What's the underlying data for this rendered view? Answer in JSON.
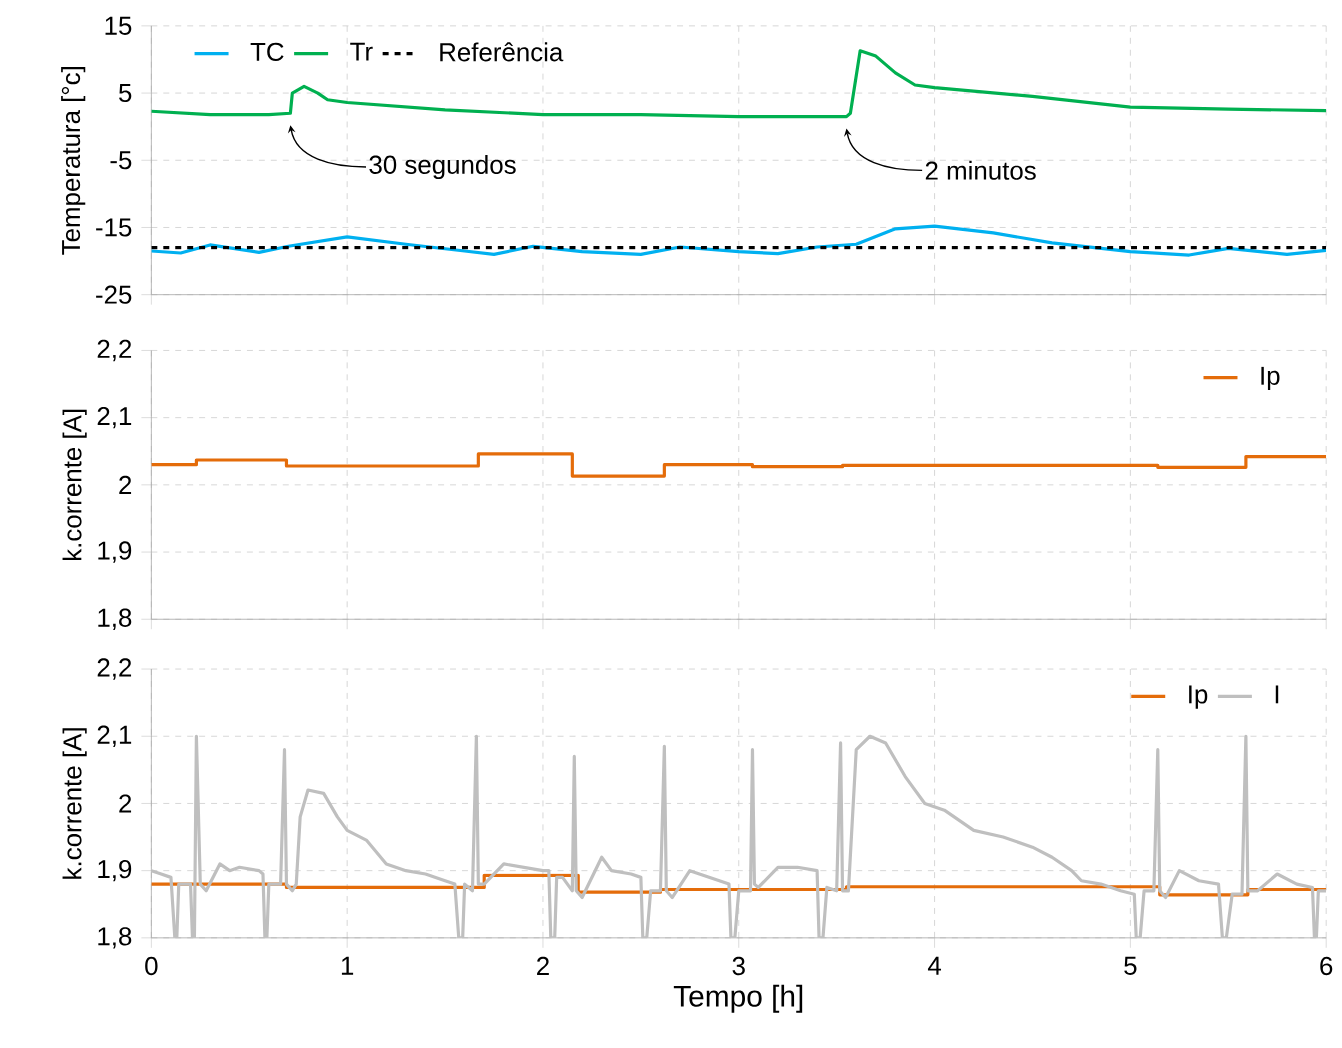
{
  "chart_data": [
    {
      "type": "line",
      "ylabel": "Temperatura [°c]",
      "xlim": [
        0,
        6
      ],
      "ylim": [
        -25,
        15
      ],
      "xticks": [
        0,
        1,
        2,
        3,
        4,
        5,
        6
      ],
      "yticks": [
        -25,
        -15,
        -5,
        5,
        15
      ],
      "grid": true,
      "legend": "top left",
      "tick_labels": "y",
      "series": [
        {
          "name": "TC",
          "color": "#00b0f0",
          "x": [
            0,
            0.15,
            0.3,
            0.55,
            0.7,
            1.0,
            1.3,
            1.6,
            1.75,
            1.95,
            2.2,
            2.5,
            2.7,
            3.0,
            3.2,
            3.4,
            3.6,
            3.8,
            4.0,
            4.3,
            4.6,
            5.0,
            5.3,
            5.5,
            5.8,
            6.0
          ],
          "values": [
            -18.5,
            -18.8,
            -17.6,
            -18.7,
            -17.8,
            -16.4,
            -17.5,
            -18.5,
            -19,
            -17.8,
            -18.6,
            -19,
            -17.9,
            -18.6,
            -18.9,
            -17.9,
            -17.5,
            -15.2,
            -14.8,
            -15.8,
            -17.3,
            -18.6,
            -19.1,
            -18.1,
            -19,
            -18.4
          ]
        },
        {
          "name": "Tr",
          "color": "#00b050",
          "x": [
            0,
            0.3,
            0.6,
            0.71,
            0.72,
            0.78,
            0.85,
            0.9,
            1.0,
            1.5,
            2.0,
            2.5,
            3.0,
            3.55,
            3.57,
            3.62,
            3.7,
            3.8,
            3.9,
            4.0,
            4.5,
            5.0,
            5.5,
            6.0
          ],
          "values": [
            2.3,
            1.8,
            1.8,
            2.0,
            5.0,
            6.0,
            5.0,
            4.0,
            3.6,
            2.5,
            1.8,
            1.8,
            1.5,
            1.5,
            2.0,
            11.3,
            10.5,
            8.0,
            6.2,
            5.8,
            4.5,
            2.9,
            2.6,
            2.4
          ]
        },
        {
          "name": "Referência",
          "color": "#000000",
          "line_style": "dashed",
          "x": [
            0,
            6
          ],
          "values": [
            -18,
            -18
          ]
        }
      ],
      "annotations": [
        {
          "text": "30 segundos",
          "x": 0.71,
          "y": 2.0
        },
        {
          "text": "2 minutos",
          "x": 3.55,
          "y": 1.5
        }
      ]
    },
    {
      "type": "step",
      "ylabel": "k.corrente [A]",
      "xlim": [
        0,
        6
      ],
      "ylim": [
        1.8,
        2.2
      ],
      "xticks": [
        0,
        1,
        2,
        3,
        4,
        5,
        6
      ],
      "yticks": [
        {
          "value": 1.8,
          "label": "1,8"
        },
        {
          "value": 1.9,
          "label": "1,9"
        },
        2,
        {
          "value": 2.1,
          "label": "2,1"
        },
        {
          "value": 2.2,
          "label": "2,2"
        }
      ],
      "grid": true,
      "legend": "top right",
      "tick_labels": "y",
      "series": [
        {
          "name": "Ip",
          "color": "#e46c0a",
          "x": [
            0,
            0.23,
            0.69,
            1.67,
            2.15,
            2.62,
            3.07,
            3.53,
            5.14,
            5.59,
            6.0
          ],
          "values": [
            2.03,
            2.037,
            2.028,
            2.046,
            2.013,
            2.03,
            2.027,
            2.029,
            2.026,
            2.042,
            2.042
          ]
        }
      ]
    },
    {
      "type": "line",
      "xlabel": "Tempo [h]",
      "ylabel": "k.corrente [A]",
      "xlim": [
        0,
        6
      ],
      "ylim": [
        1.8,
        2.2
      ],
      "xticks": [
        0,
        1,
        2,
        3,
        4,
        5,
        6
      ],
      "yticks": [
        {
          "value": 1.8,
          "label": "1,8"
        },
        {
          "value": 1.9,
          "label": "1,9"
        },
        2,
        {
          "value": 2.1,
          "label": "2,1"
        },
        {
          "value": 2.2,
          "label": "2,2"
        }
      ],
      "grid": true,
      "legend": "top right",
      "series": [
        {
          "name": "Ip",
          "type": "step",
          "color": "#e46c0a",
          "x": [
            0,
            0.69,
            1.7,
            2.18,
            2.6,
            3.1,
            3.55,
            5.15,
            5.6,
            6.0
          ],
          "values": [
            1.88,
            1.875,
            1.893,
            1.868,
            1.872,
            1.872,
            1.876,
            1.864,
            1.872,
            1.872
          ]
        },
        {
          "name": "I",
          "color": "#bfbfbf",
          "x": [
            0,
            0.05,
            0.1,
            0.12,
            0.13,
            0.14,
            0.2,
            0.21,
            0.22,
            0.23,
            0.25,
            0.28,
            0.35,
            0.4,
            0.45,
            0.55,
            0.57,
            0.58,
            0.59,
            0.6,
            0.66,
            0.68,
            0.69,
            0.72,
            0.74,
            0.76,
            0.8,
            0.88,
            0.95,
            1.0,
            1.1,
            1.2,
            1.3,
            1.4,
            1.5,
            1.55,
            1.57,
            1.59,
            1.6,
            1.64,
            1.66,
            1.67,
            1.7,
            1.8,
            1.9,
            2.0,
            2.03,
            2.04,
            2.06,
            2.07,
            2.1,
            2.15,
            2.16,
            2.17,
            2.2,
            2.3,
            2.35,
            2.45,
            2.5,
            2.51,
            2.53,
            2.55,
            2.6,
            2.62,
            2.63,
            2.66,
            2.75,
            2.85,
            2.95,
            2.96,
            2.98,
            3.0,
            3.06,
            3.07,
            3.08,
            3.1,
            3.2,
            3.3,
            3.4,
            3.41,
            3.43,
            3.45,
            3.5,
            3.52,
            3.53,
            3.56,
            3.6,
            3.67,
            3.75,
            3.85,
            3.95,
            4.05,
            4.2,
            4.35,
            4.5,
            4.6,
            4.7,
            4.75,
            4.85,
            4.95,
            5.02,
            5.03,
            5.05,
            5.07,
            5.12,
            5.14,
            5.15,
            5.18,
            5.25,
            5.35,
            5.45,
            5.47,
            5.49,
            5.52,
            5.57,
            5.59,
            5.6,
            5.65,
            5.75,
            5.85,
            5.93,
            5.94,
            5.95,
            5.96,
            6.0
          ],
          "values": [
            1.9,
            1.895,
            1.89,
            1.8,
            1.8,
            1.88,
            1.88,
            1.8,
            1.8,
            2.1,
            1.88,
            1.87,
            1.91,
            1.9,
            1.905,
            1.9,
            1.895,
            1.8,
            1.8,
            1.88,
            1.88,
            2.08,
            1.88,
            1.87,
            1.88,
            1.98,
            2.02,
            2.015,
            1.98,
            1.96,
            1.945,
            1.91,
            1.9,
            1.895,
            1.885,
            1.88,
            1.8,
            1.8,
            1.88,
            1.87,
            2.1,
            1.88,
            1.88,
            1.91,
            1.905,
            1.9,
            1.9,
            1.8,
            1.8,
            1.89,
            1.89,
            1.87,
            2.07,
            1.87,
            1.86,
            1.92,
            1.9,
            1.895,
            1.89,
            1.8,
            1.8,
            1.87,
            1.87,
            2.085,
            1.87,
            1.86,
            1.9,
            1.89,
            1.88,
            1.8,
            1.8,
            1.87,
            1.87,
            2.08,
            1.88,
            1.875,
            1.905,
            1.905,
            1.9,
            1.8,
            1.8,
            1.875,
            1.87,
            2.09,
            1.87,
            1.87,
            2.08,
            2.1,
            2.09,
            2.04,
            2.0,
            1.99,
            1.96,
            1.95,
            1.935,
            1.92,
            1.9,
            1.885,
            1.88,
            1.87,
            1.865,
            1.8,
            1.8,
            1.87,
            1.87,
            2.08,
            1.87,
            1.86,
            1.9,
            1.885,
            1.88,
            1.8,
            1.8,
            1.865,
            1.865,
            2.1,
            1.87,
            1.87,
            1.895,
            1.88,
            1.875,
            1.8,
            1.8,
            1.87,
            1.87
          ]
        }
      ]
    }
  ]
}
